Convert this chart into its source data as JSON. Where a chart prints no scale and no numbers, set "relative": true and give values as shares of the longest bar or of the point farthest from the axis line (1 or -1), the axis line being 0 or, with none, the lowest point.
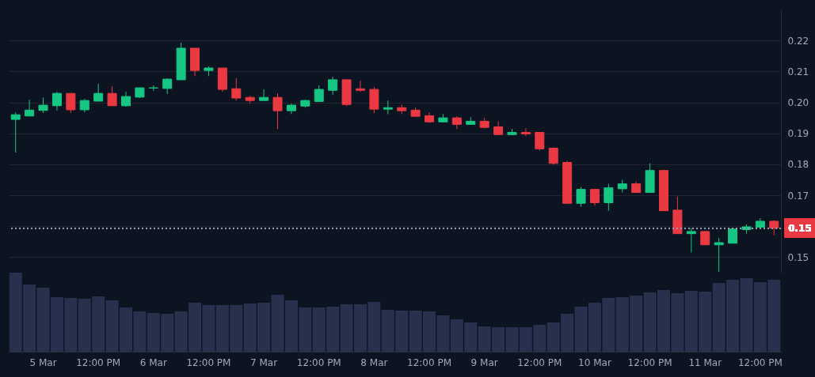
{
  "chart_data": [
    {
      "type": "candlestick",
      "categories": [
        null,
        null,
        null,
        null,
        null,
        null,
        null,
        null,
        null,
        null,
        null,
        null,
        null,
        null,
        null,
        null,
        null,
        null,
        null,
        null,
        null,
        null,
        null,
        null,
        null,
        null,
        null,
        null,
        null,
        null,
        null,
        null,
        null,
        null,
        null,
        null,
        null,
        null,
        null,
        null,
        null,
        null,
        null,
        null,
        null,
        null,
        null,
        null,
        null,
        null,
        null,
        null,
        null,
        null,
        null,
        null
      ],
      "ohlc": [
        [
          0.1945,
          0.1968,
          0.1838,
          0.196
        ],
        [
          0.1956,
          0.2009,
          0.1956,
          0.1975
        ],
        [
          0.1974,
          0.2016,
          0.1966,
          0.1991
        ],
        [
          0.1989,
          0.2034,
          0.1974,
          0.2029
        ],
        [
          0.2029,
          0.2029,
          0.1966,
          0.1976
        ],
        [
          0.1976,
          0.2011,
          0.1968,
          0.2006
        ],
        [
          0.2004,
          0.206,
          0.2004,
          0.2029
        ],
        [
          0.2029,
          0.2052,
          0.1989,
          0.1989
        ],
        [
          0.1989,
          0.2034,
          0.1986,
          0.2019
        ],
        [
          0.2017,
          0.2047,
          0.2014,
          0.2047
        ],
        [
          0.2046,
          0.2055,
          0.2037,
          0.2047
        ],
        [
          0.2045,
          0.2078,
          0.2027,
          0.2075
        ],
        [
          0.2073,
          0.2193,
          0.2073,
          0.2175
        ],
        [
          0.2175,
          0.2175,
          0.2085,
          0.2103
        ],
        [
          0.2103,
          0.2116,
          0.2085,
          0.2111
        ],
        [
          0.2111,
          0.2111,
          0.2034,
          0.2042
        ],
        [
          0.2044,
          0.2078,
          0.2006,
          0.2014
        ],
        [
          0.2016,
          0.2021,
          0.1996,
          0.2006
        ],
        [
          0.2006,
          0.2042,
          0.2006,
          0.2016
        ],
        [
          0.2016,
          0.2029,
          0.1914,
          0.1973
        ],
        [
          0.1973,
          0.1996,
          0.1962,
          0.1991
        ],
        [
          0.1988,
          0.2009,
          0.1983,
          0.2006
        ],
        [
          0.2003,
          0.2055,
          0.2003,
          0.2042
        ],
        [
          0.2039,
          0.2083,
          0.2024,
          0.2073
        ],
        [
          0.2073,
          0.2075,
          0.1988,
          0.1993
        ],
        [
          0.2044,
          0.207,
          0.2034,
          0.2039
        ],
        [
          0.2042,
          0.205,
          0.1965,
          0.1978
        ],
        [
          0.1978,
          0.2006,
          0.1962,
          0.1983
        ],
        [
          0.1983,
          0.1993,
          0.1962,
          0.1973
        ],
        [
          0.1975,
          0.1983,
          0.1955,
          0.1955
        ],
        [
          0.1957,
          0.1968,
          0.1934,
          0.1937
        ],
        [
          0.1937,
          0.1962,
          0.1937,
          0.195
        ],
        [
          0.195,
          0.1955,
          0.1914,
          0.1929
        ],
        [
          0.1929,
          0.1952,
          0.1929,
          0.1939
        ],
        [
          0.1939,
          0.195,
          0.1916,
          0.1919
        ],
        [
          0.1921,
          0.1939,
          0.1896,
          0.1896
        ],
        [
          0.1896,
          0.1914,
          0.1896,
          0.1903
        ],
        [
          0.1903,
          0.1916,
          0.1891,
          0.1898
        ],
        [
          0.1903,
          0.1903,
          0.1845,
          0.185
        ],
        [
          0.1852,
          0.1855,
          0.1798,
          0.1803
        ],
        [
          0.1806,
          0.1811,
          0.1674,
          0.1674
        ],
        [
          0.1674,
          0.1727,
          0.1663,
          0.1719
        ],
        [
          0.1719,
          0.1719,
          0.1666,
          0.1676
        ],
        [
          0.1676,
          0.1737,
          0.165,
          0.1724
        ],
        [
          0.1721,
          0.175,
          0.1709,
          0.1737
        ],
        [
          0.1737,
          0.1744,
          0.1709,
          0.1709
        ],
        [
          0.1709,
          0.1803,
          0.1709,
          0.178
        ],
        [
          0.178,
          0.1783,
          0.165,
          0.165
        ],
        [
          0.1652,
          0.1696,
          0.1576,
          0.1576
        ],
        [
          0.1576,
          0.1594,
          0.1515,
          0.1583
        ],
        [
          0.1583,
          0.1583,
          0.154,
          0.154
        ],
        [
          0.154,
          0.1562,
          0.1453,
          0.1547
        ],
        [
          0.1545,
          0.1591,
          0.1545,
          0.1591
        ],
        [
          0.1589,
          0.1606,
          0.1576,
          0.1598
        ],
        [
          0.1597,
          0.1626,
          0.1597,
          0.1616
        ],
        [
          0.1616,
          0.1619,
          0.1571,
          0.1594
        ]
      ],
      "colors": [
        "#16c784",
        "#16c784",
        "#16c784",
        "#16c784",
        "#ea3943",
        "#16c784",
        "#16c784",
        "#ea3943",
        "#16c784",
        "#16c784",
        "#16c784",
        "#16c784",
        "#16c784",
        "#ea3943",
        "#16c784",
        "#ea3943",
        "#ea3943",
        "#ea3943",
        "#16c784",
        "#ea3943",
        "#16c784",
        "#16c784",
        "#16c784",
        "#16c784",
        "#ea3943",
        "#ea3943",
        "#ea3943",
        "#16c784",
        "#ea3943",
        "#ea3943",
        "#ea3943",
        "#16c784",
        "#ea3943",
        "#16c784",
        "#ea3943",
        "#ea3943",
        "#16c784",
        "#ea3943",
        "#ea3943",
        "#ea3943",
        "#ea3943",
        "#16c784",
        "#ea3943",
        "#16c784",
        "#16c784",
        "#ea3943",
        "#16c784",
        "#ea3943",
        "#ea3943",
        "#16c784",
        "#ea3943",
        "#16c784",
        "#16c784",
        "#16c784",
        "#16c784",
        "#ea3943"
      ],
      "ylim": [
        0.145,
        0.23
      ],
      "yticks": [
        0.15,
        {
          "value": 0.16,
          "label": null
        },
        0.17,
        0.18,
        0.19,
        {
          "value": 0.2,
          "label": "0.20"
        },
        0.21,
        0.22
      ],
      "annotations": [
        "0.15"
      ],
      "grid": "y",
      "tick_labels": "y",
      "ref_lines": [
        {
          "axis": "y",
          "value": 0.1594,
          "line_style": "dotted"
        }
      ]
    },
    {
      "type": "bar",
      "relative": true,
      "color": "#27304d",
      "categories": [
        null,
        null,
        "5 Mar",
        null,
        null,
        null,
        "12:00 PM",
        null,
        null,
        null,
        "6 Mar",
        null,
        null,
        null,
        "12:00 PM",
        null,
        null,
        null,
        "7 Mar",
        null,
        null,
        null,
        "12:00 PM",
        null,
        null,
        null,
        "8 Mar",
        null,
        null,
        null,
        "12:00 PM",
        null,
        null,
        null,
        "9 Mar",
        null,
        null,
        null,
        "12:00 PM",
        null,
        null,
        null,
        "10 Mar",
        null,
        null,
        null,
        "12:00 PM",
        null,
        null,
        null,
        "11 Mar",
        null,
        null,
        null,
        "12:00 PM",
        null
      ],
      "values": [
        1,
        0.85,
        0.81,
        0.69,
        0.68,
        0.67,
        0.7,
        0.65,
        0.56,
        0.51,
        0.49,
        0.48,
        0.51,
        0.62,
        0.59,
        0.59,
        0.59,
        0.61,
        0.62,
        0.72,
        0.65,
        0.56,
        0.56,
        0.57,
        0.6,
        0.6,
        0.63,
        0.53,
        0.52,
        0.52,
        0.51,
        0.46,
        0.41,
        0.37,
        0.32,
        0.31,
        0.31,
        0.31,
        0.34,
        0.37,
        0.48,
        0.57,
        0.62,
        0.68,
        0.69,
        0.71,
        0.75,
        0.78,
        0.74,
        0.77,
        0.76,
        0.87,
        0.91,
        0.93,
        0.88,
        0.91
      ],
      "tick_labels": "x"
    }
  ]
}
